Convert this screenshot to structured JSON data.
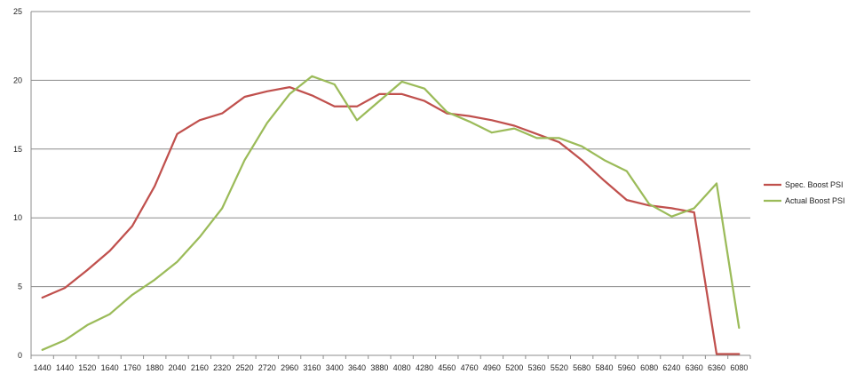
{
  "chart_data": {
    "type": "line",
    "title": "",
    "xlabel": "",
    "ylabel": "",
    "x_categories": [
      "1440",
      "1440",
      "1520",
      "1640",
      "1760",
      "1880",
      "2040",
      "2160",
      "2320",
      "2520",
      "2720",
      "2960",
      "3160",
      "3400",
      "3640",
      "3880",
      "4080",
      "4280",
      "4560",
      "4760",
      "4960",
      "5200",
      "5360",
      "5520",
      "5680",
      "5840",
      "5960",
      "6080",
      "6240",
      "6360",
      "6360",
      "6080"
    ],
    "ylim": [
      0,
      25
    ],
    "yticks": [
      0,
      5,
      10,
      15,
      20,
      25
    ],
    "grid": "horizontal",
    "legend_position": "right",
    "series": [
      {
        "name": "Spec. Boost PSI",
        "color": "#C0504D",
        "values": [
          4.2,
          4.9,
          6.2,
          7.6,
          9.4,
          12.3,
          16.1,
          17.1,
          17.6,
          18.8,
          19.2,
          19.5,
          18.9,
          18.1,
          18.1,
          19.0,
          19.0,
          18.5,
          17.6,
          17.4,
          17.1,
          16.7,
          16.1,
          15.5,
          14.2,
          12.7,
          11.3,
          10.9,
          10.7,
          10.4,
          0.1,
          0.1
        ]
      },
      {
        "name": "Actual Boost PSI",
        "color": "#9BBB59",
        "values": [
          0.4,
          1.1,
          2.2,
          3.0,
          4.4,
          5.5,
          6.8,
          8.6,
          10.7,
          14.2,
          16.9,
          19.0,
          20.3,
          19.7,
          17.1,
          18.5,
          19.9,
          19.4,
          17.7,
          17.0,
          16.2,
          16.5,
          15.8,
          15.8,
          15.2,
          14.2,
          13.4,
          11.0,
          10.1,
          10.7,
          12.5,
          2.0
        ]
      }
    ]
  }
}
